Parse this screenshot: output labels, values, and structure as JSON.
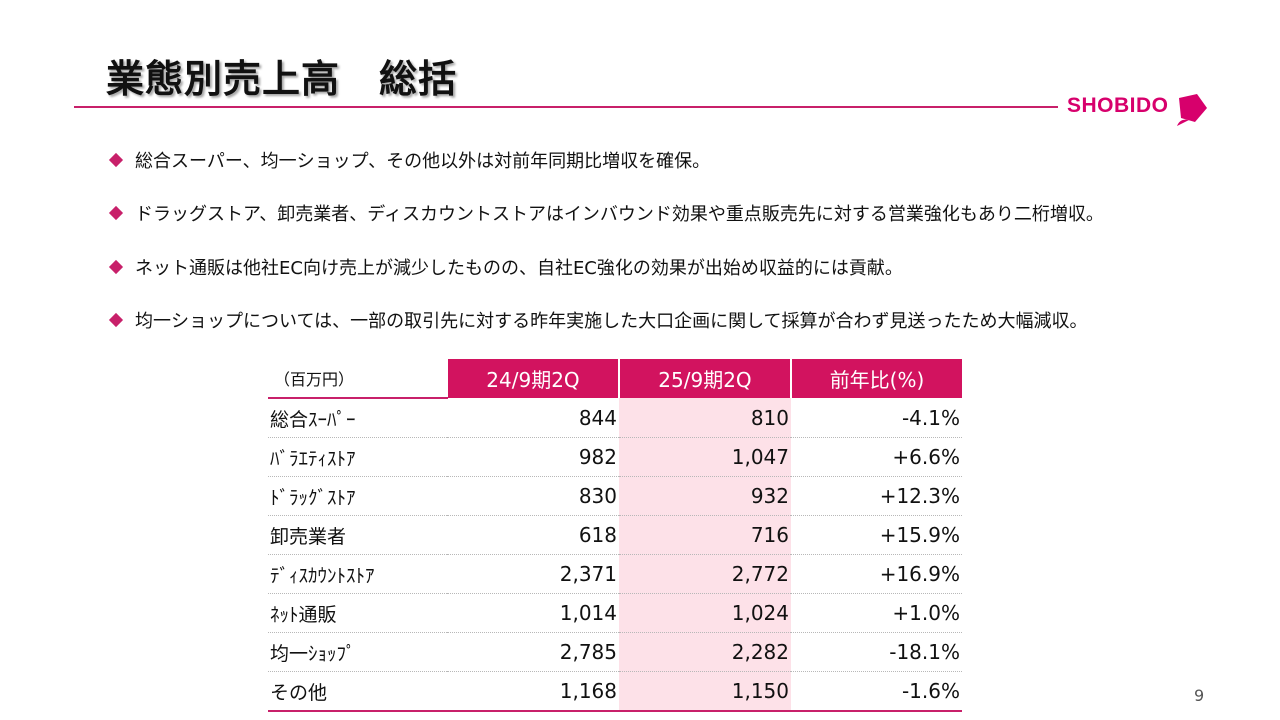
{
  "title": "業態別売上高　総括",
  "logo": {
    "text": "SHOBIDO",
    "color": "#d7006c"
  },
  "accent_color": "#c8206a",
  "highlight_color": "#fde1e8",
  "bullets": [
    "総合スーパー、均一ショップ、その他以外は対前年同期比増収を確保。",
    "ドラッグストア、卸売業者、ディスカウントストアはインバウンド効果や重点販売先に対する営業強化もあり二桁増収。",
    "ネット通販は他社EC向け売上が減少したものの、自社EC強化の効果が出始め収益的には貢献。",
    "均一ショップについては、一部の取引先に対する昨年実施した大口企画に関して採算が合わず見送ったため大幅減収。"
  ],
  "table": {
    "unit": "（百万円）",
    "headers": [
      "24/9期2Q",
      "25/9期2Q",
      "前年比(%)"
    ],
    "rows": [
      {
        "label": "総合ｽｰﾊﾟｰ",
        "prev": "844",
        "curr": "810",
        "yoy": "-4.1%"
      },
      {
        "label": "ﾊﾞﾗｴﾃｨｽﾄｱ",
        "prev": "982",
        "curr": "1,047",
        "yoy": "+6.6%"
      },
      {
        "label": "ﾄﾞﾗｯｸﾞｽﾄｱ",
        "prev": "830",
        "curr": "932",
        "yoy": "+12.3%"
      },
      {
        "label": "卸売業者",
        "prev": "618",
        "curr": "716",
        "yoy": "+15.9%"
      },
      {
        "label": "ﾃﾞｨｽｶｳﾝﾄｽﾄｱ",
        "prev": "2,371",
        "curr": "2,772",
        "yoy": "+16.9%"
      },
      {
        "label": "ﾈｯﾄ通販",
        "prev": "1,014",
        "curr": "1,024",
        "yoy": "+1.0%"
      },
      {
        "label": "均一ｼｮｯﾌﾟ",
        "prev": "2,785",
        "curr": "2,282",
        "yoy": "-18.1%"
      },
      {
        "label": "その他",
        "prev": "1,168",
        "curr": "1,150",
        "yoy": "-1.6%"
      }
    ]
  },
  "page_number": "9"
}
